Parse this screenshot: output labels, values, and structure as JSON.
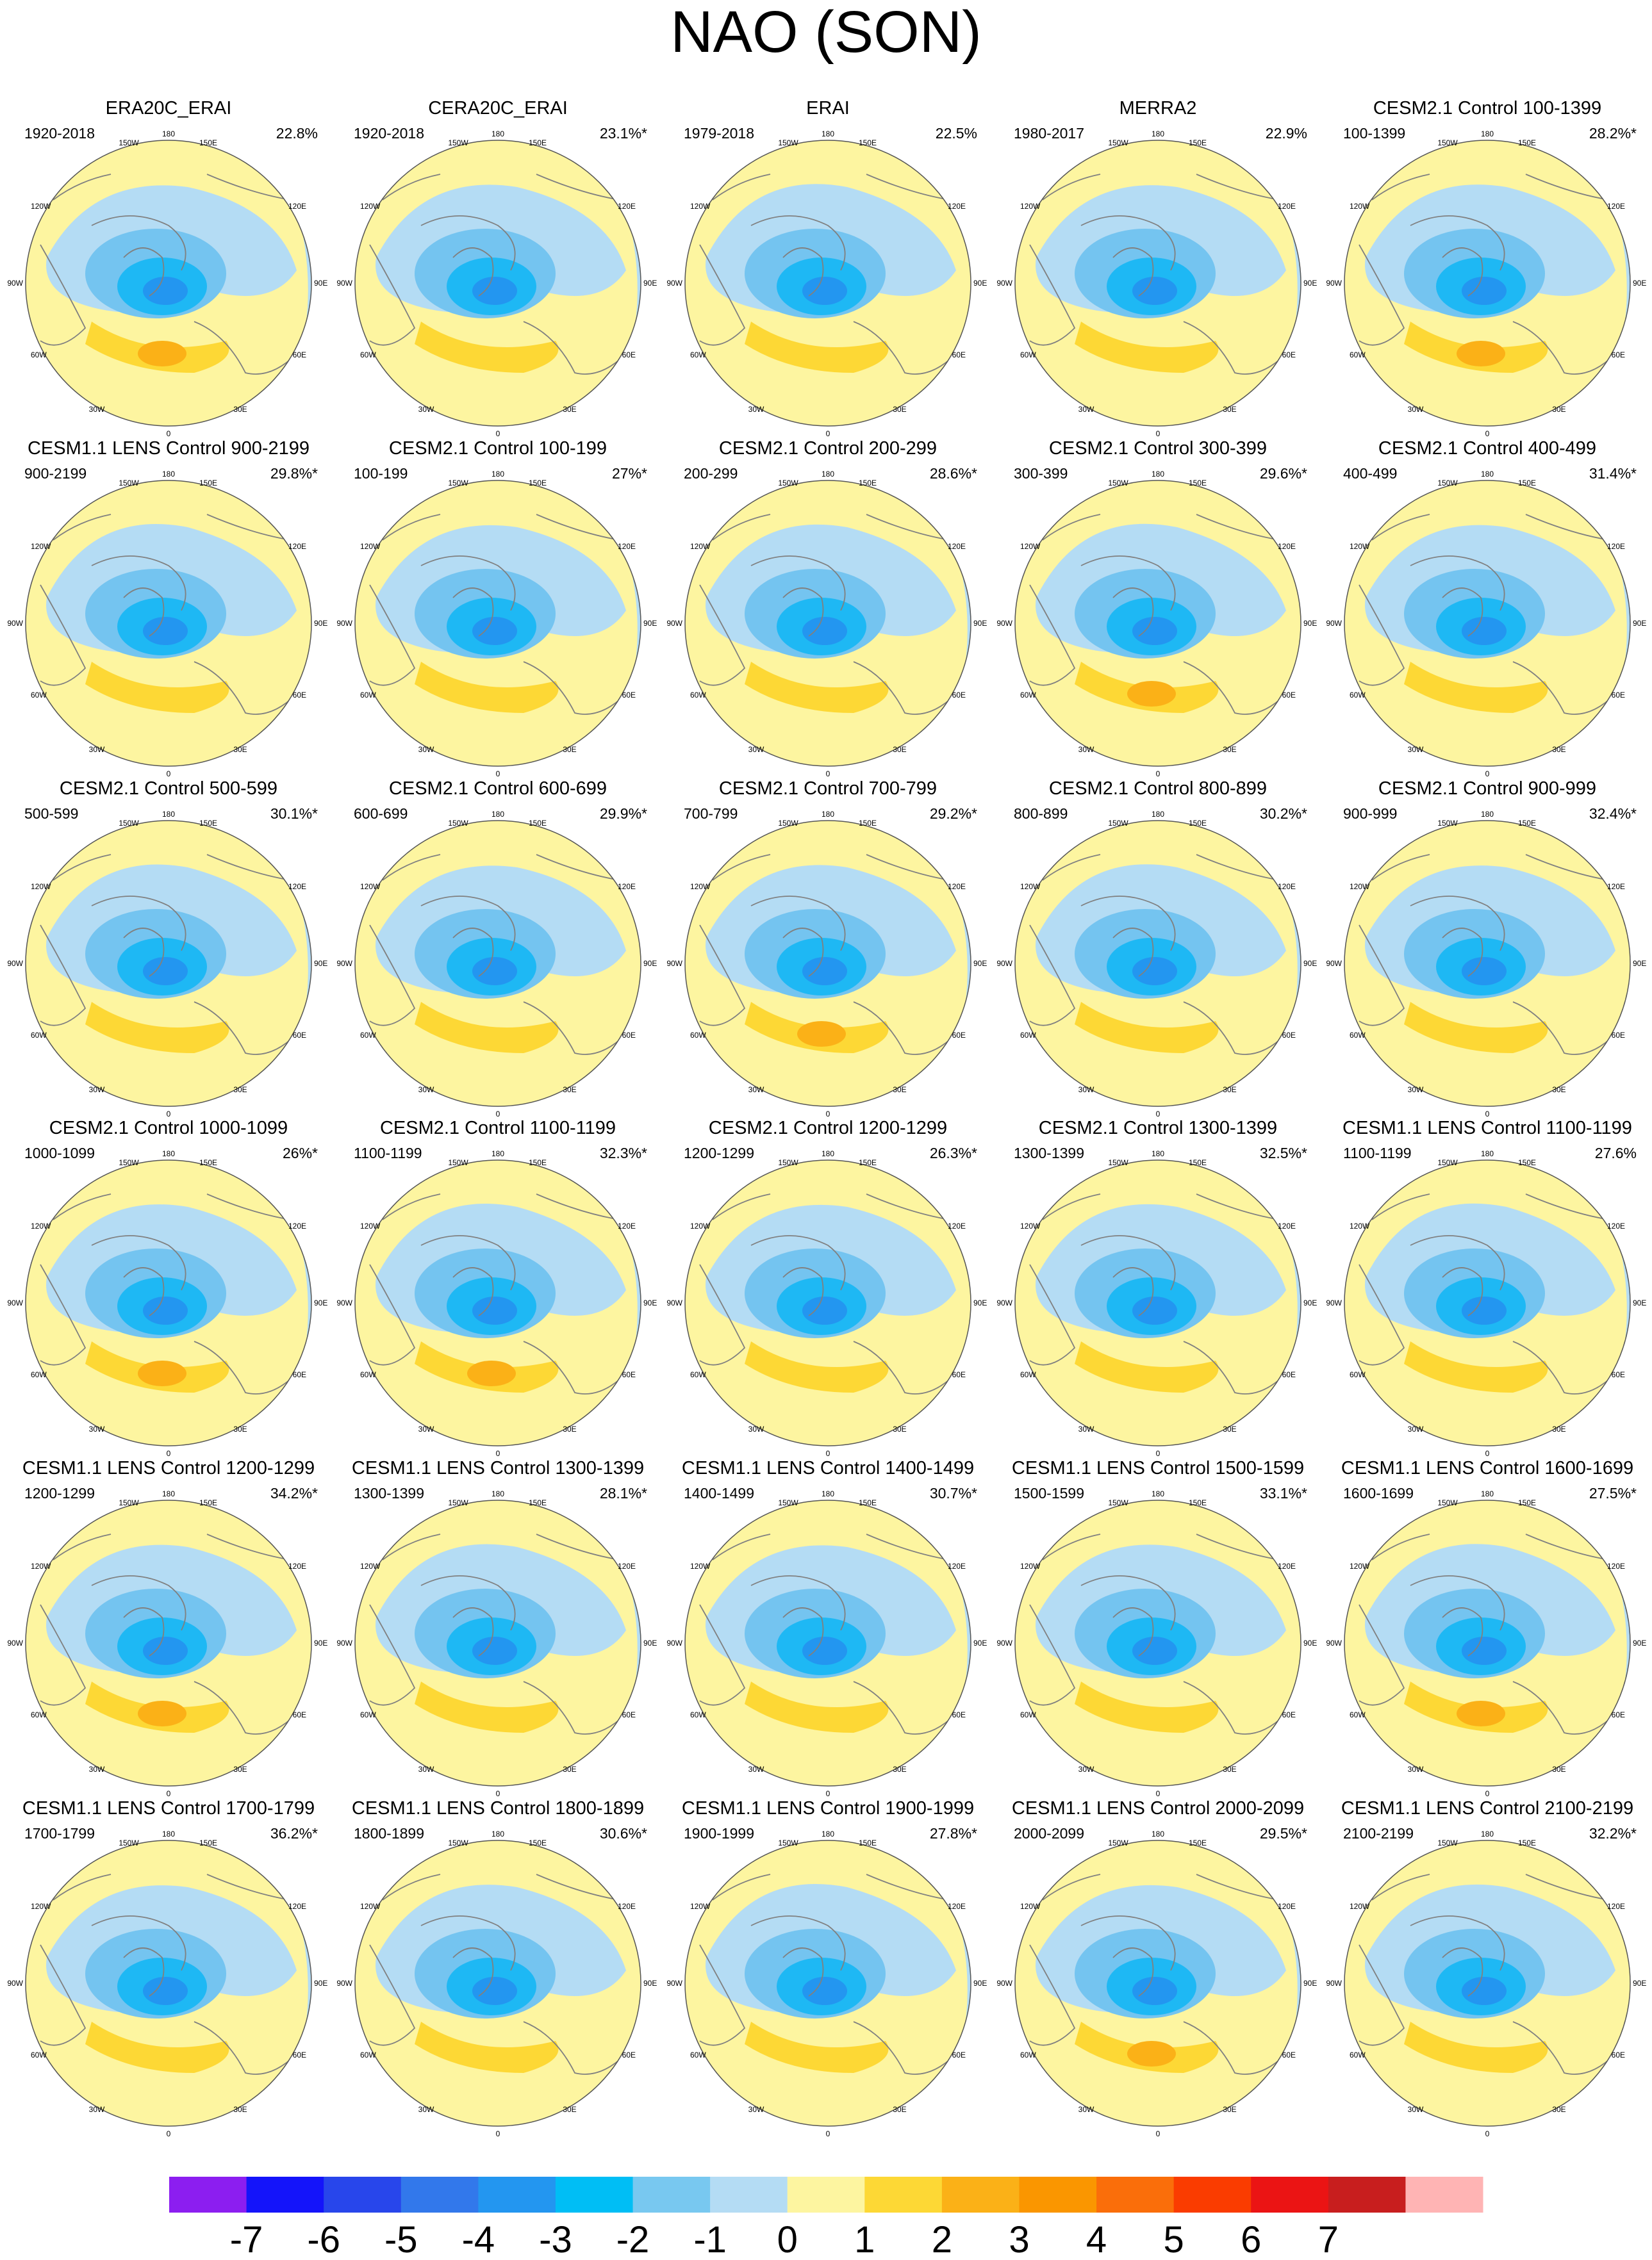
{
  "title": "NAO (SON)",
  "colors": {
    "land": "#fdf5a0",
    "neg1": "#b4dcf4",
    "neg2": "#74c4f0",
    "neg3": "#1eb8f4",
    "neg4": "#2396f0",
    "pos1": "#fdd835",
    "pos2": "#fbb117",
    "coast": "#808080"
  },
  "map_labels": {
    "top": "180",
    "top_left": "150W",
    "top_right": "150E",
    "upper_left": "120W",
    "upper_right": "120E",
    "left": "90W",
    "right": "90E",
    "lower_left": "60W",
    "lower_right": "60E",
    "bottom_left": "30W",
    "bottom_right": "30E",
    "bottom": "0"
  },
  "panels": [
    {
      "title": "ERA20C_ERAI",
      "period": "1920-2018",
      "pct": "22.8%"
    },
    {
      "title": "CERA20C_ERAI",
      "period": "1920-2018",
      "pct": "23.1%*"
    },
    {
      "title": "ERAI",
      "period": "1979-2018",
      "pct": "22.5%"
    },
    {
      "title": "MERRA2",
      "period": "1980-2017",
      "pct": "22.9%"
    },
    {
      "title": "CESM2.1 Control 100-1399",
      "period": "100-1399",
      "pct": "28.2%*"
    },
    {
      "title": "CESM1.1 LENS Control 900-2199",
      "period": "900-2199",
      "pct": "29.8%*"
    },
    {
      "title": "CESM2.1 Control 100-199",
      "period": "100-199",
      "pct": "27%*"
    },
    {
      "title": "CESM2.1 Control 200-299",
      "period": "200-299",
      "pct": "28.6%*"
    },
    {
      "title": "CESM2.1 Control 300-399",
      "period": "300-399",
      "pct": "29.6%*"
    },
    {
      "title": "CESM2.1 Control 400-499",
      "period": "400-499",
      "pct": "31.4%*"
    },
    {
      "title": "CESM2.1 Control 500-599",
      "period": "500-599",
      "pct": "30.1%*"
    },
    {
      "title": "CESM2.1 Control 600-699",
      "period": "600-699",
      "pct": "29.9%*"
    },
    {
      "title": "CESM2.1 Control 700-799",
      "period": "700-799",
      "pct": "29.2%*"
    },
    {
      "title": "CESM2.1 Control 800-899",
      "period": "800-899",
      "pct": "30.2%*"
    },
    {
      "title": "CESM2.1 Control 900-999",
      "period": "900-999",
      "pct": "32.4%*"
    },
    {
      "title": "CESM2.1 Control 1000-1099",
      "period": "1000-1099",
      "pct": "26%*"
    },
    {
      "title": "CESM2.1 Control 1100-1199",
      "period": "1100-1199",
      "pct": "32.3%*"
    },
    {
      "title": "CESM2.1 Control 1200-1299",
      "period": "1200-1299",
      "pct": "26.3%*"
    },
    {
      "title": "CESM2.1 Control 1300-1399",
      "period": "1300-1399",
      "pct": "32.5%*"
    },
    {
      "title": "CESM1.1 LENS Control 1100-1199",
      "period": "1100-1199",
      "pct": "27.6%"
    },
    {
      "title": "CESM1.1 LENS Control 1200-1299",
      "period": "1200-1299",
      "pct": "34.2%*"
    },
    {
      "title": "CESM1.1 LENS Control 1300-1399",
      "period": "1300-1399",
      "pct": "28.1%*"
    },
    {
      "title": "CESM1.1 LENS Control 1400-1499",
      "period": "1400-1499",
      "pct": "30.7%*"
    },
    {
      "title": "CESM1.1 LENS Control 1500-1599",
      "period": "1500-1599",
      "pct": "33.1%*"
    },
    {
      "title": "CESM1.1 LENS Control 1600-1699",
      "period": "1600-1699",
      "pct": "27.5%*"
    },
    {
      "title": "CESM1.1 LENS Control 1700-1799",
      "period": "1700-1799",
      "pct": "36.2%*"
    },
    {
      "title": "CESM1.1 LENS Control 1800-1899",
      "period": "1800-1899",
      "pct": "30.6%*"
    },
    {
      "title": "CESM1.1 LENS Control 1900-1999",
      "period": "1900-1999",
      "pct": "27.8%*"
    },
    {
      "title": "CESM1.1 LENS Control 2000-2099",
      "period": "2000-2099",
      "pct": "29.5%*"
    },
    {
      "title": "CESM1.1 LENS Control 2100-2199",
      "period": "2100-2199",
      "pct": "32.2%*"
    }
  ],
  "colorbar": {
    "colors": [
      "#8c1ef0",
      "#1414fa",
      "#2846eb",
      "#3278eb",
      "#2396f0",
      "#00bef5",
      "#78c8f0",
      "#b4dcf4",
      "#fdf5a0",
      "#fdd835",
      "#fbb117",
      "#fa9600",
      "#fa6e0a",
      "#fa3c00",
      "#eb1414",
      "#c81e1e",
      "#ffb4b4"
    ],
    "labels": [
      "-7",
      "-6",
      "-5",
      "-4",
      "-3",
      "-2",
      "-1",
      "0",
      "1",
      "2",
      "3",
      "4",
      "5",
      "6",
      "7"
    ]
  }
}
